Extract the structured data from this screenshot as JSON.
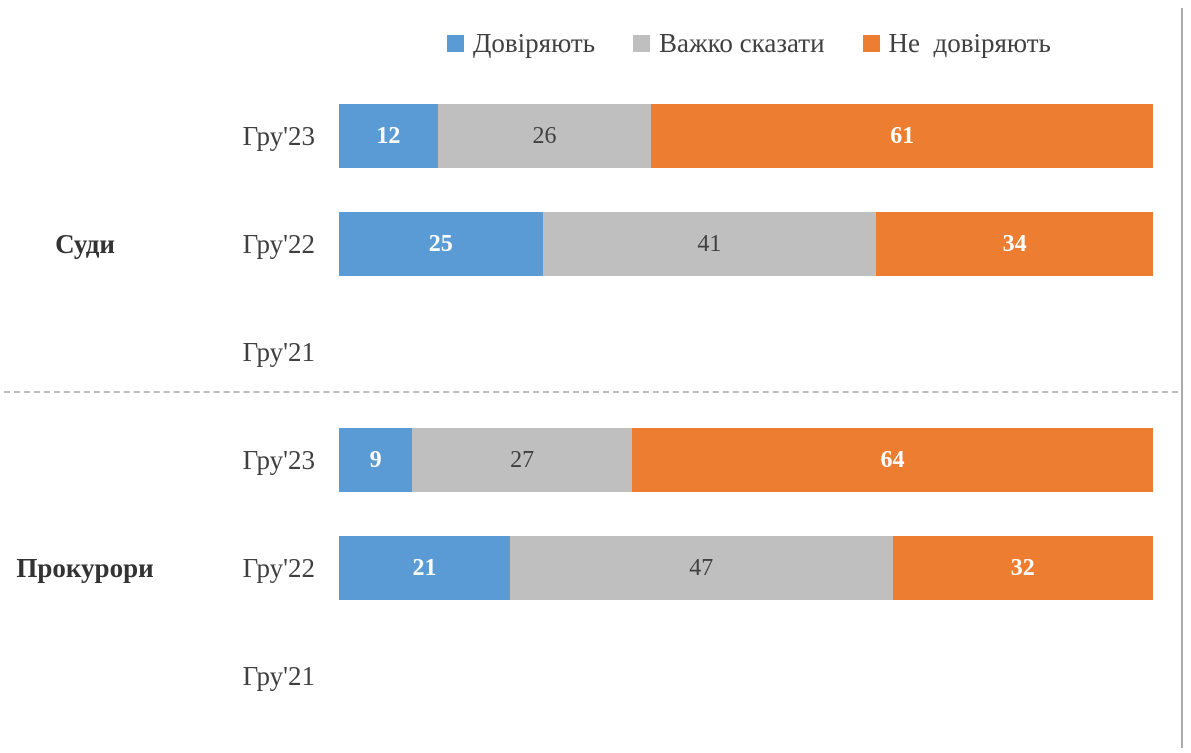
{
  "colors": {
    "trust": "#5B9BD5",
    "hard_to_say": "#BFBFBF",
    "distrust": "#ED7D31",
    "text_dark": "#404040",
    "text_light": "#FFFFFF",
    "divider": "#BDBDBD",
    "right_border": "#ABABAB"
  },
  "legend": {
    "items": [
      {
        "label": "Довіряють",
        "color": "#5B9BD5",
        "text_on_color": "light"
      },
      {
        "label": "Важко сказати",
        "color": "#BFBFBF",
        "text_on_color": "dark"
      },
      {
        "label": "Не  довіряють",
        "color": "#ED7D31",
        "text_on_color": "light"
      }
    ]
  },
  "chart_data": {
    "type": "bar",
    "orientation": "horizontal",
    "stacked": "percent",
    "legend_position": "top",
    "grid": false,
    "series_names": [
      "Довіряють",
      "Важко сказати",
      "Не довіряють"
    ],
    "series_colors": [
      "#5B9BD5",
      "#BFBFBF",
      "#ED7D31"
    ],
    "groups": [
      {
        "label": "Суди",
        "rows": [
          {
            "period": "Гру'23",
            "values": [
              12,
              26,
              61
            ]
          },
          {
            "period": "Гру'22",
            "values": [
              25,
              41,
              34
            ]
          },
          {
            "period": "Гру'21",
            "values": null
          }
        ]
      },
      {
        "label": "Прокурори",
        "rows": [
          {
            "period": "Гру'23",
            "values": [
              9,
              27,
              64
            ]
          },
          {
            "period": "Гру'22",
            "values": [
              21,
              47,
              32
            ]
          },
          {
            "period": "Гру'21",
            "values": null
          }
        ]
      }
    ]
  }
}
